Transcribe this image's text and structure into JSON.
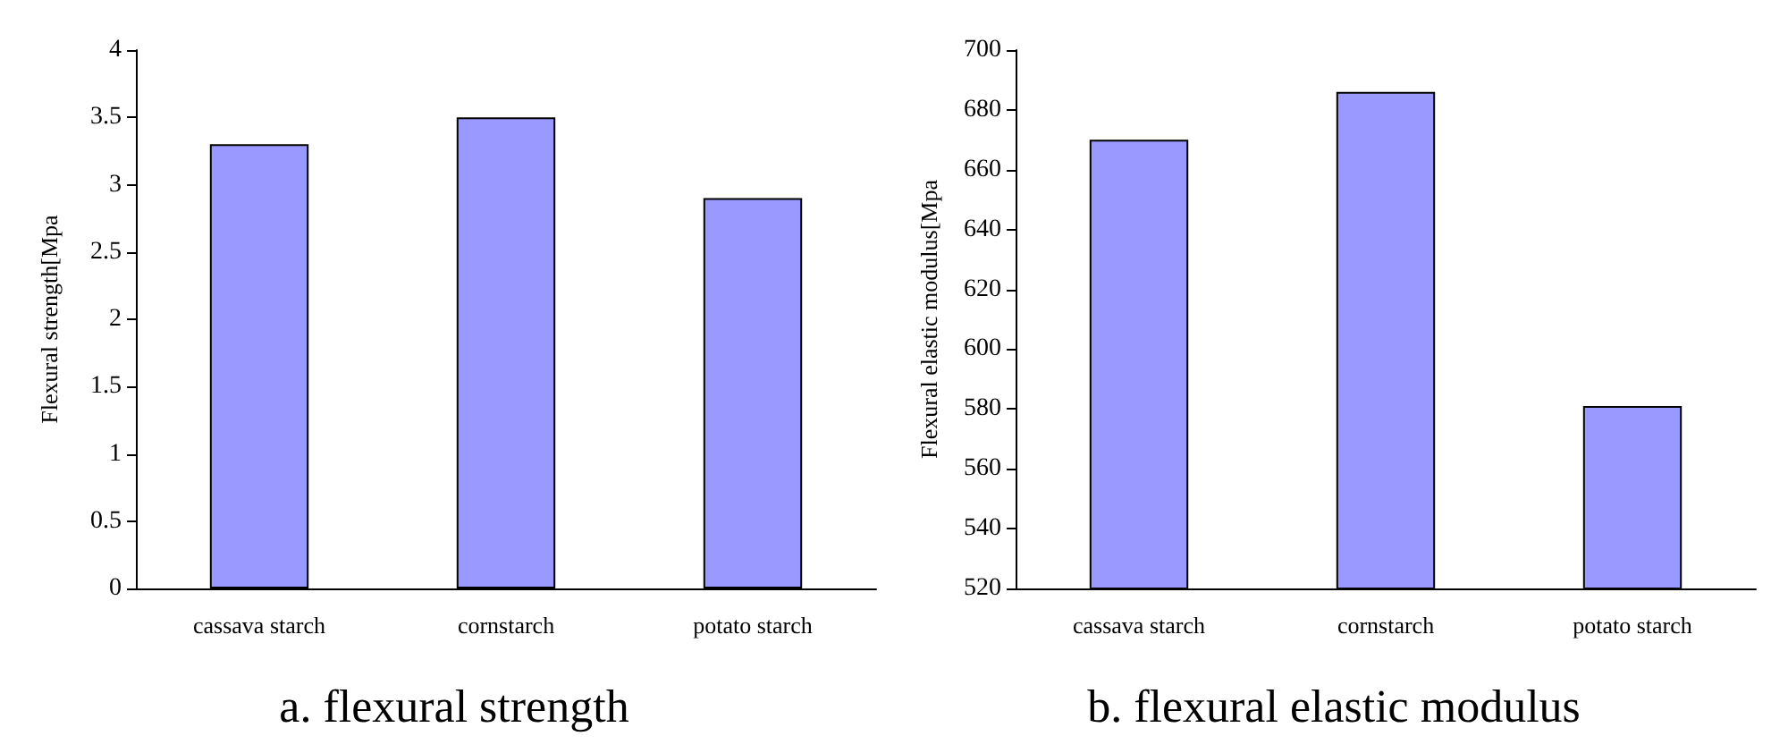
{
  "chart_data": [
    {
      "type": "bar",
      "title": "a. flexural strength",
      "ylabel": "Flexural strength[Mpa",
      "categories": [
        "cassava starch",
        "cornstarch",
        "potato starch"
      ],
      "values": [
        3.3,
        3.5,
        2.9
      ],
      "color": "#9999ff",
      "ylim": [
        0,
        4
      ],
      "yticks": [
        0,
        0.5,
        1,
        1.5,
        2,
        2.5,
        3,
        3.5,
        4
      ],
      "grid": false
    },
    {
      "type": "bar",
      "title": "b. flexural elastic modulus",
      "ylabel": "Flexural elastic modulus[Mpa",
      "categories": [
        "cassava starch",
        "cornstarch",
        "potato starch"
      ],
      "values": [
        670,
        686,
        581
      ],
      "color": "#9999ff",
      "ylim": [
        520,
        700
      ],
      "yticks": [
        520,
        540,
        560,
        580,
        600,
        620,
        640,
        660,
        680,
        700
      ],
      "grid": false
    }
  ]
}
